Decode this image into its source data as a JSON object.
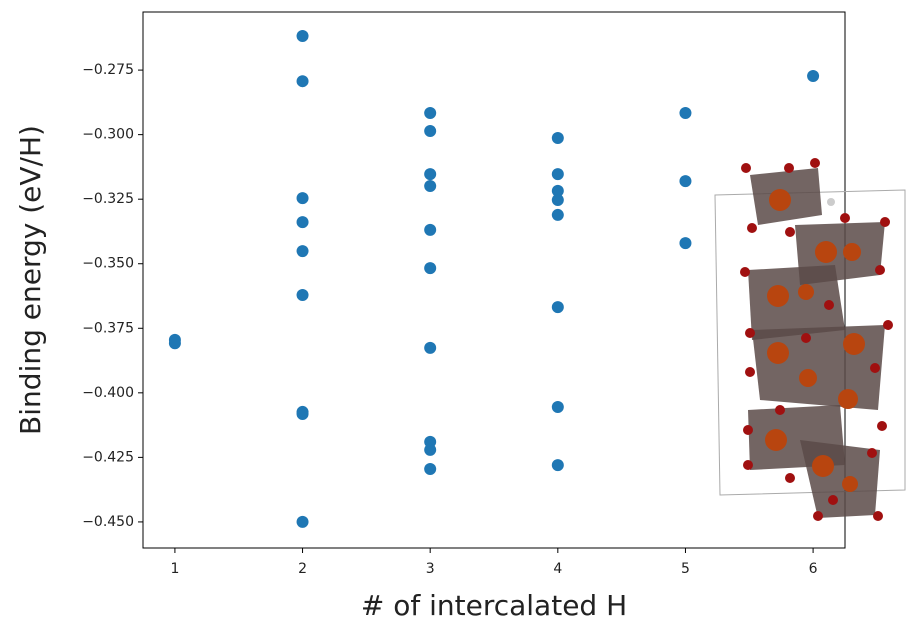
{
  "chart_data": {
    "type": "scatter",
    "x_label": "# of intercalated H",
    "y_label": "Binding energy (eV/H)",
    "color": "#1f77b4",
    "x": [
      1,
      1,
      2,
      2,
      2,
      2,
      2,
      2,
      2,
      2,
      2,
      3,
      3,
      3,
      3,
      3,
      3,
      3,
      3,
      3,
      3,
      4,
      4,
      4,
      4,
      4,
      4,
      4,
      4,
      5,
      5,
      5,
      6
    ],
    "values": [
      -0.3795,
      -0.3808,
      -0.2618,
      -0.2793,
      -0.3246,
      -0.3339,
      -0.3451,
      -0.3621,
      -0.4074,
      -0.4082,
      -0.45,
      -0.2916,
      -0.2986,
      -0.3153,
      -0.3199,
      -0.3369,
      -0.3517,
      -0.3826,
      -0.419,
      -0.4221,
      -0.4295,
      -0.3013,
      -0.3153,
      -0.3218,
      -0.3253,
      -0.3311,
      -0.3668,
      -0.4055,
      -0.428,
      -0.2916,
      -0.318,
      -0.342,
      -0.2773
    ],
    "xlim": [
      0.75,
      6.25
    ],
    "ylim": [
      -0.4601,
      -0.2525
    ],
    "xticks": [
      1,
      2,
      3,
      4,
      5,
      6
    ],
    "yticks": [
      {
        "value": -0.275,
        "label": "−0.275"
      },
      {
        "value": -0.3,
        "label": "−0.300"
      },
      {
        "value": -0.325,
        "label": "−0.325"
      },
      {
        "value": -0.35,
        "label": "−0.350"
      },
      {
        "value": -0.375,
        "label": "−0.375"
      },
      {
        "value": -0.4,
        "label": "−0.400"
      },
      {
        "value": -0.425,
        "label": "−0.425"
      },
      {
        "value": -0.45,
        "label": "−0.450"
      }
    ]
  }
}
